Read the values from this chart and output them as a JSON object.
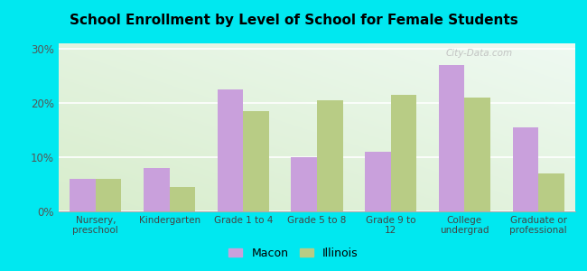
{
  "title": "School Enrollment by Level of School for Female Students",
  "categories": [
    "Nursery,\npreschool",
    "Kindergarten",
    "Grade 1 to 4",
    "Grade 5 to 8",
    "Grade 9 to\n12",
    "College\nundergrad",
    "Graduate or\nprofessional"
  ],
  "macon_values": [
    6.0,
    8.0,
    22.5,
    10.0,
    11.0,
    27.0,
    15.5
  ],
  "illinois_values": [
    6.0,
    4.5,
    18.5,
    20.5,
    21.5,
    21.0,
    7.0
  ],
  "macon_color": "#c9a0dc",
  "illinois_color": "#b8cc85",
  "background_outer": "#00e8f0",
  "ylim": [
    0,
    31
  ],
  "yticks": [
    0,
    10,
    20,
    30
  ],
  "ytick_labels": [
    "0%",
    "10%",
    "20%",
    "30%"
  ],
  "bar_width": 0.35,
  "legend_labels": [
    "Macon",
    "Illinois"
  ],
  "watermark": "City-Data.com"
}
